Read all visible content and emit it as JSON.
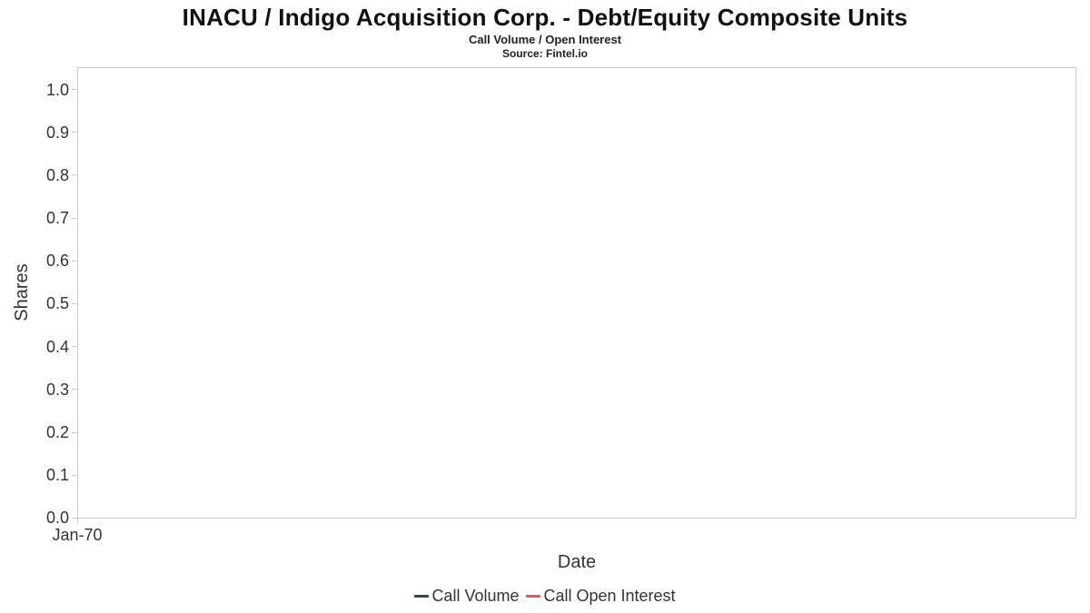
{
  "chart_data": {
    "type": "line",
    "title": "INACU / Indigo Acquisition Corp. - Debt/Equity Composite Units",
    "subtitle": "Call Volume / Open Interest",
    "source": "Source: Fintel.io",
    "xlabel": "Date",
    "ylabel": "Shares",
    "ylim": [
      0.0,
      1.05
    ],
    "grid": false,
    "legend_position": "bottom",
    "ytick_labels": [
      "1.0",
      "0.9",
      "0.8",
      "0.7",
      "0.6",
      "0.5",
      "0.4",
      "0.3",
      "0.2",
      "0.1",
      "0.0"
    ],
    "xtick_labels": [
      "Jan-70"
    ],
    "series": [
      {
        "name": "Call Volume",
        "color": "#2c4c3b",
        "x": [],
        "values": []
      },
      {
        "name": "Call Open Interest",
        "color": "#f0524e",
        "x": [],
        "values": []
      }
    ],
    "note": "empty chart - no data points plotted"
  }
}
